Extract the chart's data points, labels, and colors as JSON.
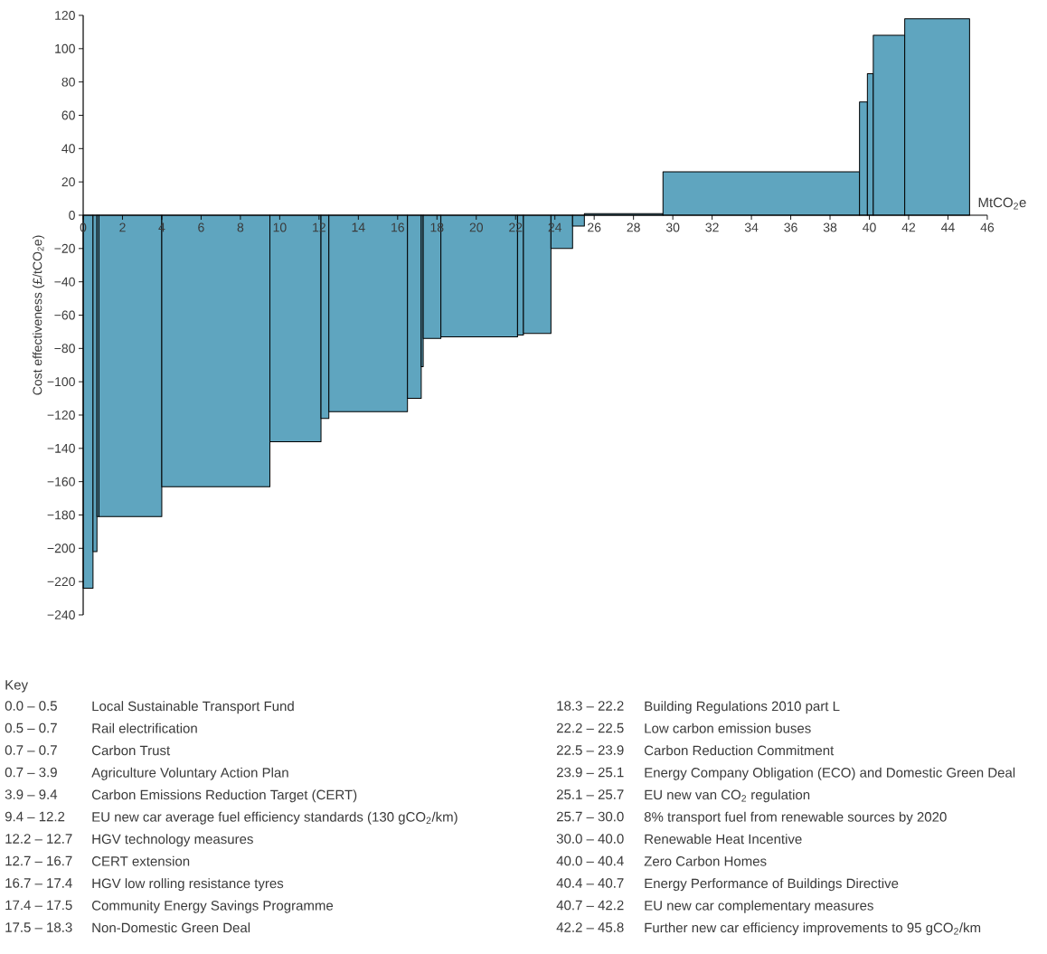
{
  "chart_data": {
    "type": "histogram",
    "xlabel": "MtCO$_{2}$e",
    "ylabel": "Cost effectiveness (£/tCO$_{2}$e)",
    "bins": [
      0,
      0.5,
      0.7,
      0.8,
      4.0,
      9.5,
      12.1,
      12.5,
      16.5,
      17.2,
      17.3,
      18.2,
      22.1,
      22.4,
      23.8,
      24.9,
      25.5,
      29.5,
      39.5,
      39.9,
      40.2,
      41.8,
      45.1
    ],
    "values": [
      -224,
      -202,
      -181,
      -181,
      -163,
      -136,
      -122,
      -118,
      -110,
      -91,
      -74,
      -73,
      -72,
      -71,
      -20,
      -6.5,
      1,
      26,
      68,
      85,
      108,
      118
    ],
    "color": "#5fa5bf",
    "xlim": [
      0,
      46
    ],
    "ylim": [
      -240,
      120
    ],
    "xticks": [
      0,
      2,
      4,
      6,
      8,
      10,
      12,
      14,
      16,
      18,
      20,
      22,
      24,
      26,
      28,
      30,
      32,
      34,
      36,
      38,
      40,
      42,
      44,
      46
    ],
    "yticks": [
      {
        "value": -240,
        "label": "−240"
      },
      {
        "value": -220,
        "label": "−220"
      },
      {
        "value": -200,
        "label": "−200"
      },
      {
        "value": -180,
        "label": "−180"
      },
      {
        "value": -160,
        "label": "−160"
      },
      {
        "value": -140,
        "label": "−140"
      },
      {
        "value": -120,
        "label": "−120"
      },
      {
        "value": -100,
        "label": "−100"
      },
      {
        "value": -80,
        "label": "−80"
      },
      {
        "value": -60,
        "label": "−60"
      },
      {
        "value": -40,
        "label": "−40"
      },
      {
        "value": -20,
        "label": "−20"
      },
      0,
      20,
      40,
      60,
      80,
      100,
      120
    ],
    "annotations": [
      "Key",
      "0.0 – 0.5",
      "Local Sustainable Transport Fund",
      "0.5 – 0.7",
      "Rail electrification",
      "0.7 – 0.7",
      "Carbon Trust",
      "0.7 – 3.9",
      "Agriculture Voluntary Action Plan",
      "3.9 – 9.4",
      "Carbon Emissions Reduction Target (CERT)",
      "9.4 – 12.2",
      "EU new car average fuel efficiency standards (130 gCO$_{2}$/km)",
      "12.2 – 12.7",
      "HGV technology measures",
      "12.7 – 16.7",
      "CERT extension",
      "16.7 – 17.4",
      "HGV low rolling resistance tyres",
      "17.4 – 17.5",
      "Community Energy Savings Programme",
      "17.5 – 18.3",
      "Non-Domestic Green Deal",
      "18.3 – 22.2",
      "Building Regulations 2010 part L",
      "22.2 – 22.5",
      "Low carbon emission buses",
      "22.5 – 23.9",
      "Carbon Reduction Commitment",
      "23.9 – 25.1",
      "Energy Company Obligation (ECO) and Domestic Green Deal",
      "25.1 – 25.7",
      "EU new van CO$_{2}$ regulation",
      "25.7 – 30.0",
      "8% transport fuel from renewable sources by 2020",
      "30.0 – 40.0",
      "Renewable Heat Incentive",
      "40.0 – 40.4",
      "Zero Carbon Homes",
      "40.4 – 40.7",
      "Energy Performance of Buildings Directive",
      "40.7 – 42.2",
      "EU new car complementary measures",
      "42.2 – 45.8",
      "Further new car efficiency improvements to 95 gCO$_{2}$/km"
    ]
  }
}
